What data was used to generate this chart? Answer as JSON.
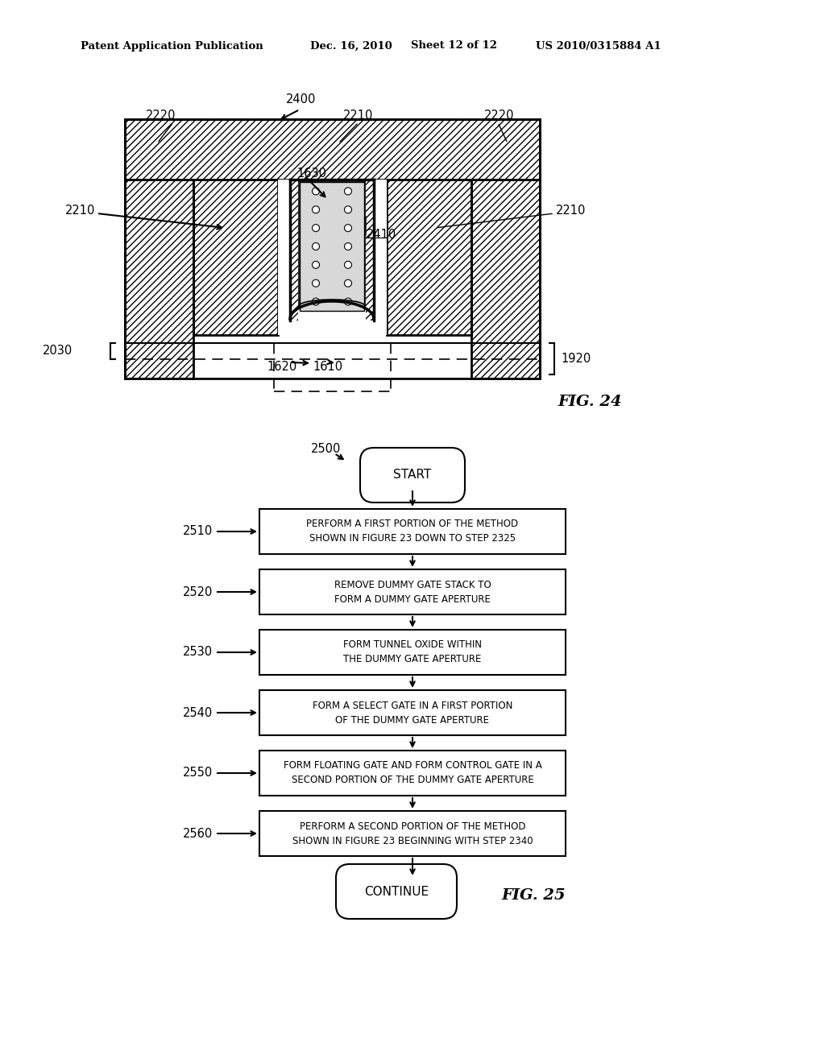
{
  "bg_color": "#ffffff",
  "header_line1": "Patent Application Publication",
  "header_line2": "Dec. 16, 2010",
  "header_line3": "Sheet 12 of 12",
  "header_line4": "US 2010/0315884 A1",
  "fig24_label": "FIG. 24",
  "fig25_label": "FIG. 25",
  "flowchart_steps": [
    {
      "label": "2510",
      "text": "PERFORM A FIRST PORTION OF THE METHOD\nSHOWN IN FIGURE 23 DOWN TO STEP 2325"
    },
    {
      "label": "2520",
      "text": "REMOVE DUMMY GATE STACK TO\nFORM A DUMMY GATE APERTURE"
    },
    {
      "label": "2530",
      "text": "FORM TUNNEL OXIDE WITHIN\nTHE DUMMY GATE APERTURE"
    },
    {
      "label": "2540",
      "text": "FORM A SELECT GATE IN A FIRST PORTION\nOF THE DUMMY GATE APERTURE"
    },
    {
      "label": "2550",
      "text": "FORM FLOATING GATE AND FORM CONTROL GATE IN A\nSECOND PORTION OF THE DUMMY GATE APERTURE"
    },
    {
      "label": "2560",
      "text": "PERFORM A SECOND PORTION OF THE METHOD\nSHOWN IN FIGURE 23 BEGINNING WITH STEP 2340"
    }
  ]
}
